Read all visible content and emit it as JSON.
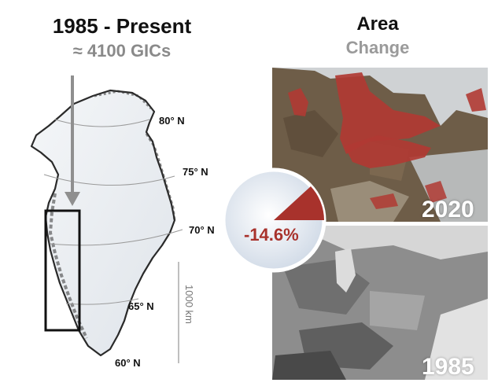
{
  "header": {
    "title": "1985 - Present",
    "subtitle": "≈ 4100 GICs"
  },
  "area": {
    "title": "Area",
    "subtitle": "Change"
  },
  "map": {
    "latitudes": [
      "80° N",
      "75° N",
      "70° N",
      "65° N",
      "60° N"
    ],
    "scale_label": "1000 km"
  },
  "panels": {
    "recent_year": "2020",
    "past_year": "1985",
    "change_percent": "-14.6%",
    "change_value": -14.6
  },
  "colors": {
    "loss_red": "#b03a33",
    "title_gray": "#8a8a8a"
  }
}
